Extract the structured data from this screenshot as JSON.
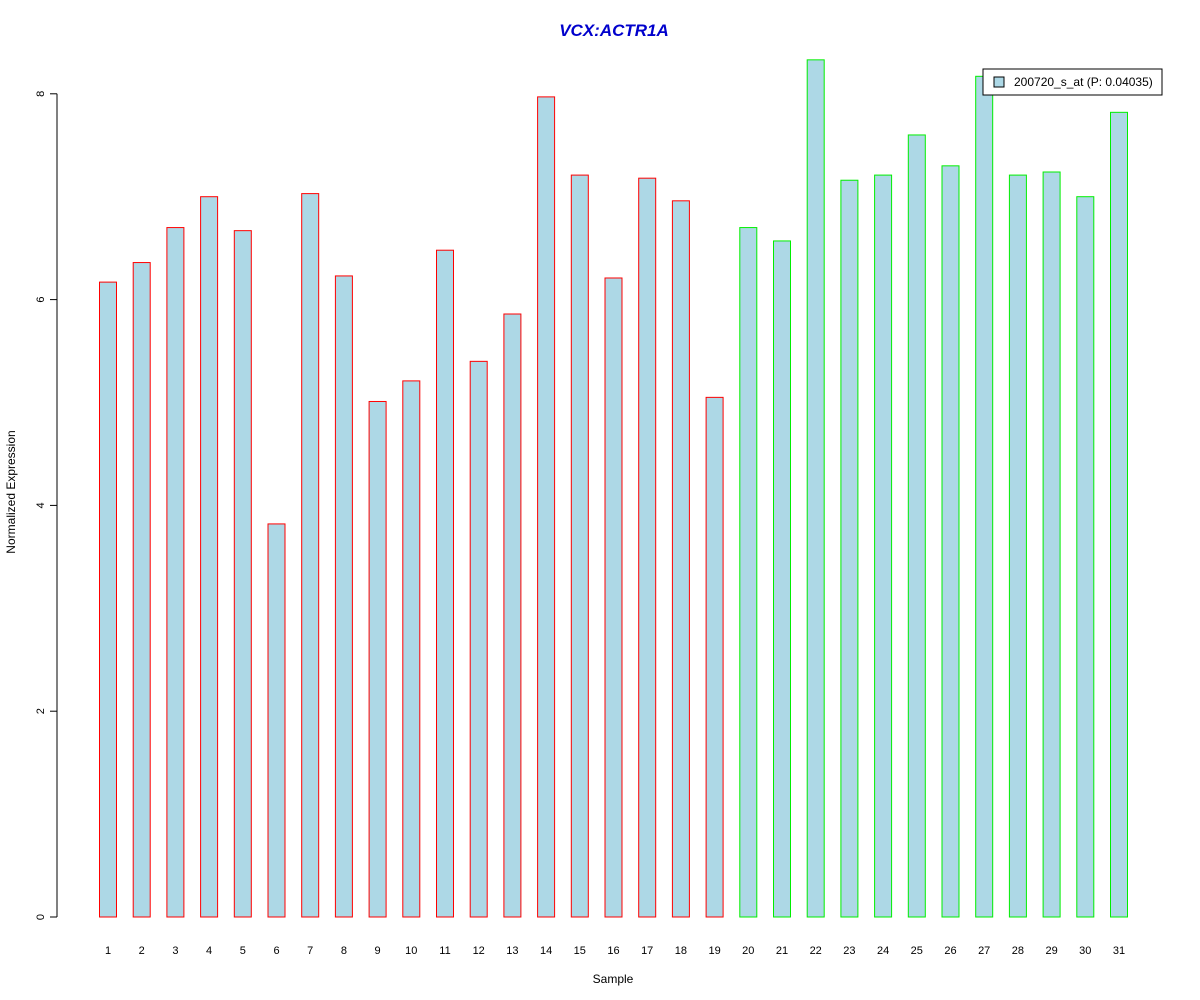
{
  "colors": {
    "title": "#0000cc",
    "bar_fill": "#add8e6",
    "group1_border": "#ff0000",
    "group2_border": "#00ee00",
    "axis": "#000000"
  },
  "chart_data": {
    "type": "bar",
    "title": "VCX:ACTR1A",
    "xlabel": "Sample",
    "ylabel": "Normalized Expression",
    "ylim": [
      0,
      8.3
    ],
    "yticks": [
      "0",
      "2",
      "4",
      "6",
      "8"
    ],
    "grid": false,
    "legend_position": "top-right",
    "categories": [
      "1",
      "2",
      "3",
      "4",
      "5",
      "6",
      "7",
      "8",
      "9",
      "10",
      "11",
      "12",
      "13",
      "14",
      "15",
      "16",
      "17",
      "18",
      "19",
      "20",
      "21",
      "22",
      "23",
      "24",
      "25",
      "26",
      "27",
      "28",
      "29",
      "30",
      "31"
    ],
    "series": [
      {
        "name": "200720_s_at (P: 0.04035)",
        "values": [
          6.17,
          6.36,
          6.7,
          7.0,
          6.67,
          3.82,
          7.03,
          6.23,
          5.01,
          5.21,
          6.48,
          5.4,
          5.86,
          7.97,
          7.21,
          6.21,
          7.18,
          6.96,
          5.05,
          6.7,
          6.57,
          8.33,
          7.16,
          7.21,
          7.6,
          7.3,
          8.17,
          7.21,
          7.24,
          7.0,
          7.82
        ]
      }
    ],
    "group_border": [
      "group1",
      "group1",
      "group1",
      "group1",
      "group1",
      "group1",
      "group1",
      "group1",
      "group1",
      "group1",
      "group1",
      "group1",
      "group1",
      "group1",
      "group1",
      "group1",
      "group1",
      "group1",
      "group1",
      "group2",
      "group2",
      "group2",
      "group2",
      "group2",
      "group2",
      "group2",
      "group2",
      "group2",
      "group2",
      "group2",
      "group2"
    ]
  }
}
